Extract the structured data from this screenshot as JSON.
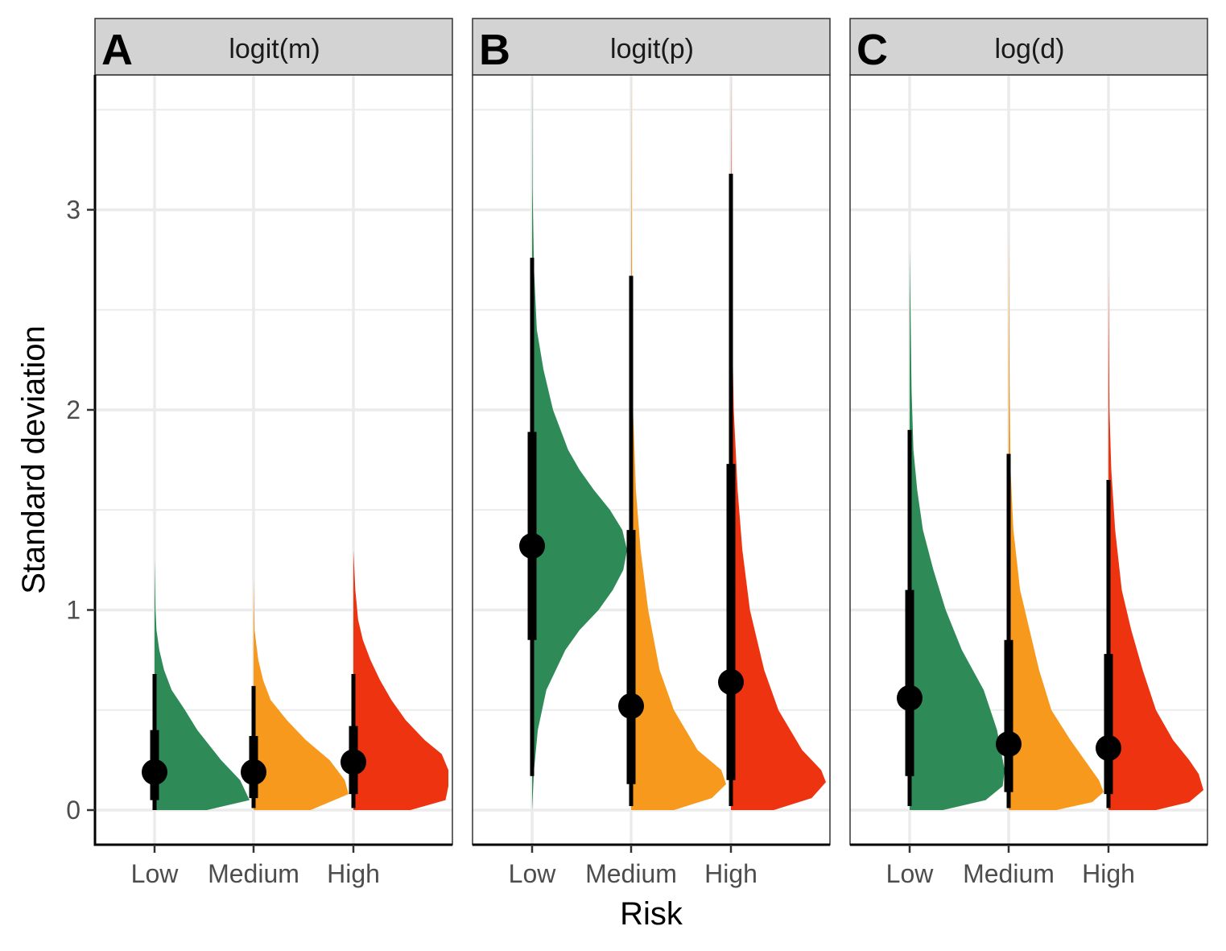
{
  "chart_data": {
    "type": "half-violin (raincloud) with point interval",
    "xlabel": "Risk",
    "ylabel": "Standard deviation",
    "categories": [
      "Low",
      "Medium",
      "High"
    ],
    "ylim": [
      -0.17,
      3.68
    ],
    "yticks": [
      0,
      1,
      2,
      3
    ],
    "grid": true,
    "legend": "none",
    "colors": {
      "Low": "#2e8b57",
      "Medium": "#f7991c",
      "High": "#ee3311"
    },
    "panels": [
      {
        "letter": "A",
        "title": "logit(m)",
        "series": [
          {
            "category": "Low",
            "median": 0.19,
            "inner": [
              0.05,
              0.4
            ],
            "outer": [
              0.0,
              0.68
            ],
            "max": 1.25,
            "peak_y": 0.05,
            "density": [
              [
                0,
                0.55
              ],
              [
                0.05,
                1.0
              ],
              [
                0.15,
                0.9
              ],
              [
                0.25,
                0.7
              ],
              [
                0.4,
                0.45
              ],
              [
                0.5,
                0.32
              ],
              [
                0.6,
                0.18
              ],
              [
                0.7,
                0.1
              ],
              [
                0.8,
                0.05
              ],
              [
                0.9,
                0.02
              ],
              [
                1.0,
                0.01
              ],
              [
                1.25,
                0
              ]
            ]
          },
          {
            "category": "Medium",
            "median": 0.19,
            "inner": [
              0.06,
              0.37
            ],
            "outer": [
              0.01,
              0.62
            ],
            "max": 1.15,
            "peak_y": 0.08,
            "density": [
              [
                0,
                0.6
              ],
              [
                0.08,
                1.0
              ],
              [
                0.15,
                0.96
              ],
              [
                0.25,
                0.8
              ],
              [
                0.35,
                0.55
              ],
              [
                0.45,
                0.35
              ],
              [
                0.55,
                0.18
              ],
              [
                0.65,
                0.1
              ],
              [
                0.75,
                0.05
              ],
              [
                0.9,
                0.01
              ],
              [
                1.15,
                0
              ]
            ]
          },
          {
            "category": "High",
            "median": 0.24,
            "inner": [
              0.08,
              0.42
            ],
            "outer": [
              0.01,
              0.68
            ],
            "max": 1.3,
            "peak_y": 0.2,
            "density": [
              [
                0,
                0.6
              ],
              [
                0.05,
                0.97
              ],
              [
                0.12,
                1.0
              ],
              [
                0.2,
                1.0
              ],
              [
                0.28,
                0.93
              ],
              [
                0.35,
                0.75
              ],
              [
                0.45,
                0.55
              ],
              [
                0.55,
                0.4
              ],
              [
                0.65,
                0.28
              ],
              [
                0.75,
                0.18
              ],
              [
                0.85,
                0.1
              ],
              [
                0.95,
                0.05
              ],
              [
                1.1,
                0.02
              ],
              [
                1.3,
                0
              ]
            ]
          }
        ]
      },
      {
        "letter": "B",
        "title": "logit(p)",
        "series": [
          {
            "category": "Low",
            "median": 1.32,
            "inner": [
              0.85,
              1.89
            ],
            "outer": [
              0.17,
              2.76
            ],
            "max": 3.7,
            "peak_y": 1.3,
            "density": [
              [
                0,
                0
              ],
              [
                0.2,
                0.02
              ],
              [
                0.4,
                0.06
              ],
              [
                0.6,
                0.15
              ],
              [
                0.8,
                0.35
              ],
              [
                0.9,
                0.5
              ],
              [
                1.0,
                0.7
              ],
              [
                1.1,
                0.85
              ],
              [
                1.2,
                0.96
              ],
              [
                1.3,
                1.0
              ],
              [
                1.4,
                0.95
              ],
              [
                1.5,
                0.82
              ],
              [
                1.6,
                0.65
              ],
              [
                1.7,
                0.5
              ],
              [
                1.8,
                0.38
              ],
              [
                2.0,
                0.22
              ],
              [
                2.2,
                0.12
              ],
              [
                2.4,
                0.05
              ],
              [
                2.7,
                0.02
              ],
              [
                3.1,
                0.005
              ],
              [
                3.7,
                0
              ]
            ]
          },
          {
            "category": "Medium",
            "median": 0.52,
            "inner": [
              0.13,
              1.4
            ],
            "outer": [
              0.02,
              2.67
            ],
            "max": 3.7,
            "peak_y": 0.13,
            "density": [
              [
                0,
                0.45
              ],
              [
                0.06,
                0.85
              ],
              [
                0.13,
                1.0
              ],
              [
                0.2,
                0.95
              ],
              [
                0.3,
                0.7
              ],
              [
                0.5,
                0.45
              ],
              [
                0.7,
                0.3
              ],
              [
                1.0,
                0.18
              ],
              [
                1.3,
                0.1
              ],
              [
                1.6,
                0.05
              ],
              [
                2.0,
                0.02
              ],
              [
                2.5,
                0.01
              ],
              [
                3.7,
                0
              ]
            ]
          },
          {
            "category": "High",
            "median": 0.64,
            "inner": [
              0.15,
              1.73
            ],
            "outer": [
              0.02,
              3.18
            ],
            "max": 3.7,
            "peak_y": 0.14,
            "density": [
              [
                0,
                0.45
              ],
              [
                0.06,
                0.85
              ],
              [
                0.14,
                1.0
              ],
              [
                0.2,
                0.95
              ],
              [
                0.3,
                0.75
              ],
              [
                0.5,
                0.5
              ],
              [
                0.7,
                0.35
              ],
              [
                1.0,
                0.2
              ],
              [
                1.3,
                0.12
              ],
              [
                1.6,
                0.07
              ],
              [
                2.0,
                0.03
              ],
              [
                2.5,
                0.01
              ],
              [
                3.7,
                0
              ]
            ]
          }
        ]
      },
      {
        "letter": "C",
        "title": "log(d)",
        "series": [
          {
            "category": "Low",
            "median": 0.56,
            "inner": [
              0.17,
              1.1
            ],
            "outer": [
              0.02,
              1.9
            ],
            "max": 2.8,
            "peak_y": 0.14,
            "density": [
              [
                0,
                0.35
              ],
              [
                0.05,
                0.8
              ],
              [
                0.12,
                0.98
              ],
              [
                0.2,
                1.0
              ],
              [
                0.4,
                0.92
              ],
              [
                0.6,
                0.78
              ],
              [
                0.8,
                0.55
              ],
              [
                1.0,
                0.38
              ],
              [
                1.2,
                0.25
              ],
              [
                1.4,
                0.14
              ],
              [
                1.6,
                0.08
              ],
              [
                1.8,
                0.04
              ],
              [
                2.1,
                0.02
              ],
              [
                2.8,
                0
              ]
            ]
          },
          {
            "category": "Medium",
            "median": 0.33,
            "inner": [
              0.09,
              0.85
            ],
            "outer": [
              0.01,
              1.78
            ],
            "max": 2.9,
            "peak_y": 0.08,
            "density": [
              [
                0,
                0.5
              ],
              [
                0.04,
                0.88
              ],
              [
                0.09,
                1.0
              ],
              [
                0.15,
                0.95
              ],
              [
                0.25,
                0.8
              ],
              [
                0.35,
                0.65
              ],
              [
                0.5,
                0.45
              ],
              [
                0.7,
                0.32
              ],
              [
                0.9,
                0.22
              ],
              [
                1.1,
                0.12
              ],
              [
                1.4,
                0.05
              ],
              [
                1.7,
                0.02
              ],
              [
                2.1,
                0.01
              ],
              [
                2.9,
                0
              ]
            ]
          },
          {
            "category": "High",
            "median": 0.31,
            "inner": [
              0.08,
              0.78
            ],
            "outer": [
              0.01,
              1.65
            ],
            "max": 2.7,
            "peak_y": 0.1,
            "density": [
              [
                0,
                0.5
              ],
              [
                0.04,
                0.85
              ],
              [
                0.1,
                1.0
              ],
              [
                0.18,
                0.95
              ],
              [
                0.25,
                0.85
              ],
              [
                0.35,
                0.68
              ],
              [
                0.5,
                0.5
              ],
              [
                0.7,
                0.36
              ],
              [
                0.9,
                0.24
              ],
              [
                1.1,
                0.14
              ],
              [
                1.4,
                0.07
              ],
              [
                1.7,
                0.03
              ],
              [
                2.0,
                0.01
              ],
              [
                2.7,
                0
              ]
            ]
          }
        ]
      }
    ]
  }
}
